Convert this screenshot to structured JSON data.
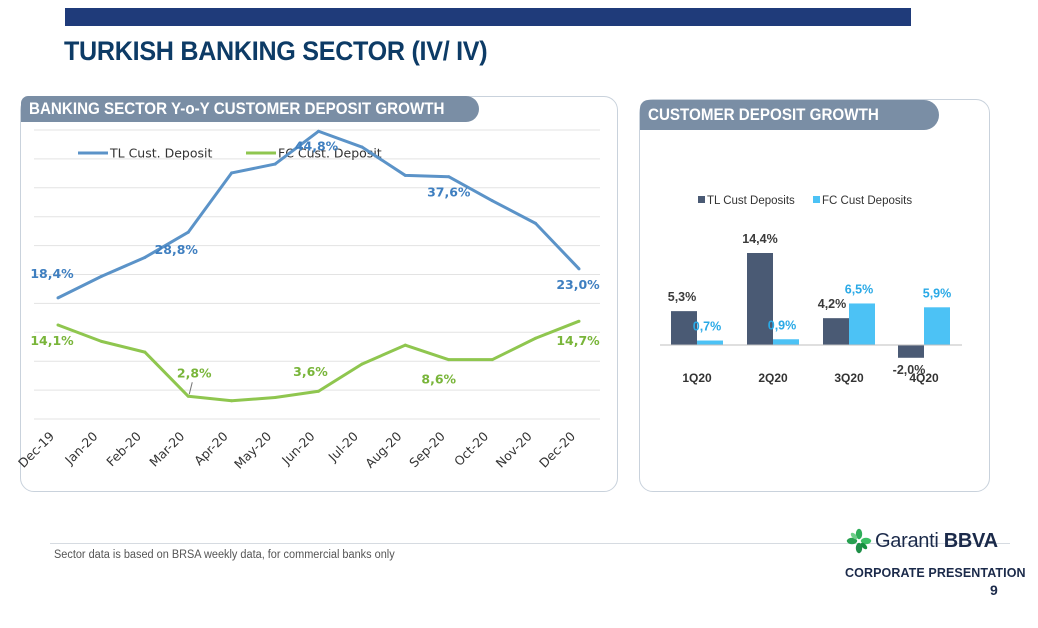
{
  "page": {
    "title": "TURKISH BANKING SECTOR (IV/ IV)",
    "footnote": "Sector data is based on BRSA weekly data, for commercial banks only",
    "corporate_label": "CORPORATE PRESENTATION",
    "page_number": "9",
    "logo_text_light": "Garanti",
    "logo_text_bold": "BBVA"
  },
  "colors": {
    "tl_line": "#5b93c8",
    "fc_line": "#8fc64f",
    "tl_bar": "#4a5a74",
    "fc_bar": "#4cc2f5",
    "header_bg": "#7a8ea5",
    "title": "#0d3b66"
  },
  "chart_data": [
    {
      "type": "line",
      "title": "BANKING SECTOR Y-o-Y CUSTOMER DEPOSIT GROWTH",
      "categories": [
        "Dec-19",
        "Jan-20",
        "Feb-20",
        "Mar-20",
        "Apr-20",
        "May-20",
        "Jun-20",
        "Jul-20",
        "Aug-20",
        "Sep-20",
        "Oct-20",
        "Nov-20",
        "Dec-20"
      ],
      "series": [
        {
          "name": "TL Cust. Deposit",
          "values": [
            18.4,
            21.8,
            24.8,
            28.8,
            38.2,
            39.6,
            44.8,
            42.3,
            37.8,
            37.6,
            33.8,
            30.2,
            23.0
          ],
          "labels": {
            "0": "18,4%",
            "3": "28,8%",
            "6": "44,8%",
            "9": "37,6%",
            "12": "23,0%"
          }
        },
        {
          "name": "FC Cust. Deposit",
          "values": [
            14.1,
            11.5,
            9.8,
            2.8,
            2.1,
            2.6,
            3.6,
            7.9,
            10.9,
            8.6,
            8.6,
            12.0,
            14.7
          ],
          "labels": {
            "0": "14,1%",
            "3": "2,8%",
            "6": "3,6%",
            "9": "8,6%",
            "12": "14,7%"
          }
        }
      ],
      "ylim": [
        -0.8,
        45
      ],
      "grid": true,
      "legend": "top-left"
    },
    {
      "type": "bar",
      "title": "CUSTOMER DEPOSIT GROWTH",
      "categories": [
        "1Q20",
        "2Q20",
        "3Q20",
        "4Q20"
      ],
      "series": [
        {
          "name": "TL Cust Deposits",
          "values": [
            5.3,
            14.4,
            4.2,
            -2.0
          ],
          "labels": [
            "5,3%",
            "14,4%",
            "4,2%",
            "-2,0%"
          ]
        },
        {
          "name": "FC Cust Deposits",
          "values": [
            0.7,
            0.9,
            6.5,
            5.9
          ],
          "labels": [
            "0,7%",
            "0,9%",
            "6,5%",
            "5,9%"
          ]
        }
      ],
      "grid": false,
      "legend": "top"
    }
  ]
}
